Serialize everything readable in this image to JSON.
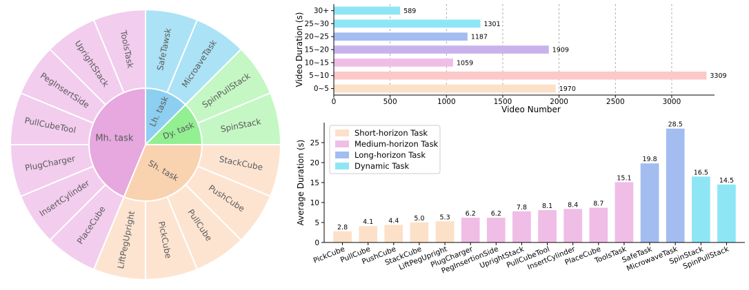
{
  "chart_data": [
    {
      "type": "sunburst",
      "inner": [
        {
          "label": "Lh. task",
          "color": "#8dcff0",
          "count": 2
        },
        {
          "label": "Dy. task",
          "color": "#92ef92",
          "count": 2
        },
        {
          "label": "Sh. task",
          "color": "#f9d2b0",
          "count": 5
        },
        {
          "label": "Mh. task",
          "color": "#e6a8de",
          "count": 7
        }
      ],
      "outer": [
        {
          "label": "SafeTawsk",
          "group": 0
        },
        {
          "label": "MicroaveTask",
          "group": 0
        },
        {
          "label": "SpinPullStack",
          "group": 1
        },
        {
          "label": "SpinStack",
          "group": 1
        },
        {
          "label": "StackCube",
          "group": 2
        },
        {
          "label": "PushCube",
          "group": 2
        },
        {
          "label": "PullCube",
          "group": 2
        },
        {
          "label": "PickCube",
          "group": 2
        },
        {
          "label": "LiftPegUpright",
          "group": 2
        },
        {
          "label": "PlaceCube",
          "group": 3
        },
        {
          "label": "InsertCylinder",
          "group": 3
        },
        {
          "label": "PlugCharger",
          "group": 3
        },
        {
          "label": "PullCubeTool",
          "group": 3
        },
        {
          "label": "PegInsertSide",
          "group": 3
        },
        {
          "label": "UprightStack",
          "group": 3
        },
        {
          "label": "ToolsTask",
          "group": 3
        }
      ],
      "outer_colors": [
        "#abe2f5",
        "#c4f7c4",
        "#fde4d1",
        "#f2cdee"
      ]
    },
    {
      "type": "bar",
      "orientation": "horizontal",
      "categories": [
        "30+",
        "25~30",
        "20~25",
        "15~20",
        "10~15",
        "5~10",
        "0~5"
      ],
      "values": [
        589,
        1301,
        1187,
        1909,
        1059,
        3309,
        1970
      ],
      "colors": [
        "#8ee6f5",
        "#8ee6f5",
        "#a3bdf0",
        "#c9b2ec",
        "#f0bde6",
        "#fcc8c8",
        "#fde0c8"
      ],
      "xlabel": "Video Number",
      "ylabel": "Video Duration (s)",
      "xlim": [
        0,
        3380
      ],
      "xticks": [
        0,
        500,
        1000,
        1500,
        2000,
        2500,
        3000
      ]
    },
    {
      "type": "bar",
      "categories": [
        "PickCube",
        "PullCube",
        "PushCube",
        "StackCube",
        "LiftPegUpright",
        "PlugCharger",
        "PegInsertionSide",
        "UprightStack",
        "PullCubeTool",
        "InsertCylinder",
        "PlaceCube",
        "ToolsTask",
        "SafeTask",
        "MicrowaveTask",
        "SpinStack",
        "SpinPullStack"
      ],
      "values": [
        2.8,
        4.1,
        4.4,
        5.0,
        5.3,
        6.2,
        6.2,
        7.8,
        8.1,
        8.4,
        8.7,
        15.1,
        19.8,
        28.5,
        16.5,
        14.5
      ],
      "value_labels": [
        "2.8",
        "4.1",
        "4.4",
        "5.0",
        "5.3",
        "6.2",
        "6.2",
        "7.8",
        "8.1",
        "8.4",
        "8.7",
        "15.1",
        "19.8",
        "28.5",
        "16.5",
        "14.5"
      ],
      "groups": [
        0,
        0,
        0,
        0,
        0,
        1,
        1,
        1,
        1,
        1,
        1,
        1,
        2,
        2,
        3,
        3
      ],
      "legend": [
        {
          "name": "Short-horizon Task",
          "color": "#fde0c8"
        },
        {
          "name": "Medium-horizon Task",
          "color": "#f0bde6"
        },
        {
          "name": "Long-horizon Task",
          "color": "#a3bdf0"
        },
        {
          "name": "Dynamic Task",
          "color": "#8ee6f5"
        }
      ],
      "legend_position": "top-left",
      "ylabel": "Average Duration (s)",
      "ylim": [
        0,
        30
      ],
      "yticks": [
        0,
        5,
        10,
        15,
        20,
        25
      ]
    }
  ]
}
